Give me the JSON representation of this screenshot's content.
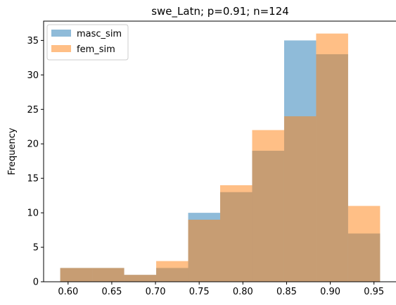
{
  "chart_data": {
    "type": "bar",
    "title": "swe_Latn; p=0.91; n=124",
    "xlabel": "",
    "ylabel": "Frequency",
    "xlim": [
      0.572,
      0.976
    ],
    "ylim": [
      0,
      37.8
    ],
    "xticks": [
      "0.60",
      "0.65",
      "0.70",
      "0.75",
      "0.80",
      "0.85",
      "0.90",
      "0.95"
    ],
    "xtick_values": [
      0.6,
      0.65,
      0.7,
      0.75,
      0.8,
      0.85,
      0.9,
      0.95
    ],
    "yticks": [
      "0",
      "5",
      "10",
      "15",
      "20",
      "25",
      "30",
      "35"
    ],
    "ytick_values": [
      0,
      5,
      10,
      15,
      20,
      25,
      30,
      35
    ],
    "bin_edges": [
      0.591,
      0.6276,
      0.6642,
      0.7008,
      0.7374,
      0.774,
      0.8106,
      0.8472,
      0.8838,
      0.9204,
      0.957
    ],
    "series": [
      {
        "name": "masc_sim",
        "color": "#1f77b4",
        "opacity": 0.5,
        "values": [
          2,
          2,
          1,
          2,
          10,
          13,
          19,
          35,
          33,
          7
        ]
      },
      {
        "name": "fem_sim",
        "color": "#ff7f0e",
        "opacity": 0.5,
        "values": [
          2,
          2,
          1,
          3,
          9,
          14,
          22,
          24,
          36,
          11
        ]
      }
    ],
    "legend": "top-left",
    "grid": false
  }
}
